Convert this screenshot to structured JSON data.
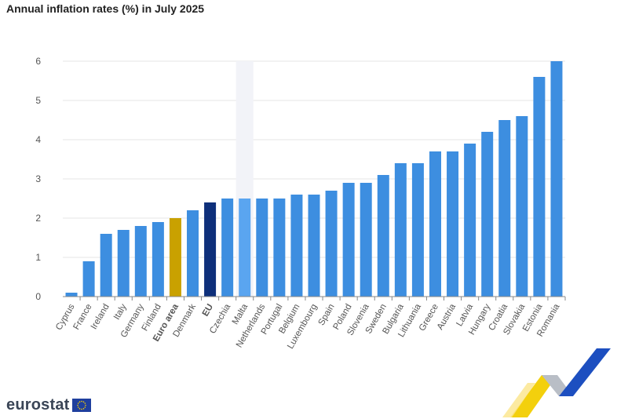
{
  "chart_data": {
    "type": "bar",
    "title": "Annual inflation rates (%) in July 2025",
    "categories": [
      "Cyprus",
      "France",
      "Ireland",
      "Italy",
      "Germany",
      "Finland",
      "Euro area",
      "Denmark",
      "EU",
      "Czechia",
      "Malta",
      "Netherlands",
      "Portugal",
      "Belgium",
      "Luxembourg",
      "Spain",
      "Poland",
      "Slovenia",
      "Sweden",
      "Bulgaria",
      "Lithuania",
      "Greece",
      "Austria",
      "Latvia",
      "Hungary",
      "Croatia",
      "Slovakia",
      "Estonia",
      "Romania"
    ],
    "values": [
      0.1,
      0.9,
      1.6,
      1.7,
      1.8,
      1.9,
      2.0,
      2.2,
      2.4,
      2.5,
      2.5,
      2.5,
      2.5,
      2.6,
      2.6,
      2.7,
      2.9,
      2.9,
      3.1,
      3.4,
      3.4,
      3.7,
      3.7,
      3.9,
      4.2,
      4.5,
      4.6,
      5.6,
      6.0
    ],
    "bold_categories": [
      "Euro area",
      "EU"
    ],
    "highlighted_category": "Malta",
    "yticks": [
      "0",
      "1",
      "2",
      "3",
      "4",
      "5",
      "6"
    ],
    "ylim": [
      0,
      6
    ],
    "grid": true,
    "legend": "none",
    "xlabel": "",
    "ylabel": "",
    "colors": {
      "default": "#3d8ee0",
      "euro_area": "#c9a100",
      "eu": "#0e2f7a",
      "highlighted": "#5aa5f0",
      "highlight_band": "#f2f3f8",
      "grid": "#e6e6e6",
      "axis": "#888888",
      "tick_text": "#555555"
    }
  },
  "footer": {
    "logo_text": "eurostat",
    "flag_icon": "eu-flag-icon",
    "decoration": "eurostat-chevron-ribbon"
  }
}
